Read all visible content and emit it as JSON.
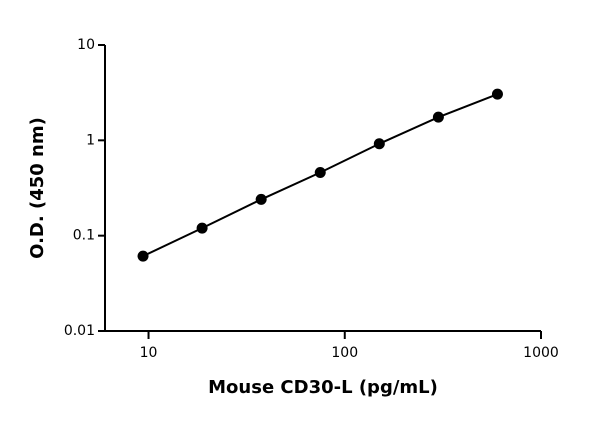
{
  "chart_data": {
    "type": "line",
    "x_label": "Mouse CD30-L (pg/mL)",
    "y_label": "O.D. (450 nm)",
    "x": [
      9.375,
      18.75,
      37.5,
      75,
      150,
      300,
      600
    ],
    "series": [
      {
        "values": [
          0.061,
          0.12,
          0.24,
          0.46,
          0.92,
          1.75,
          3.05
        ],
        "color": "#000000"
      }
    ],
    "xlim": [
      6,
      1000
    ],
    "xticks": [
      10,
      100,
      1000
    ],
    "ylim": [
      0.01,
      10
    ],
    "yticks": [
      0.01,
      0.1,
      1,
      10
    ],
    "xscale": "log",
    "yscale": "log",
    "markers": true
  }
}
